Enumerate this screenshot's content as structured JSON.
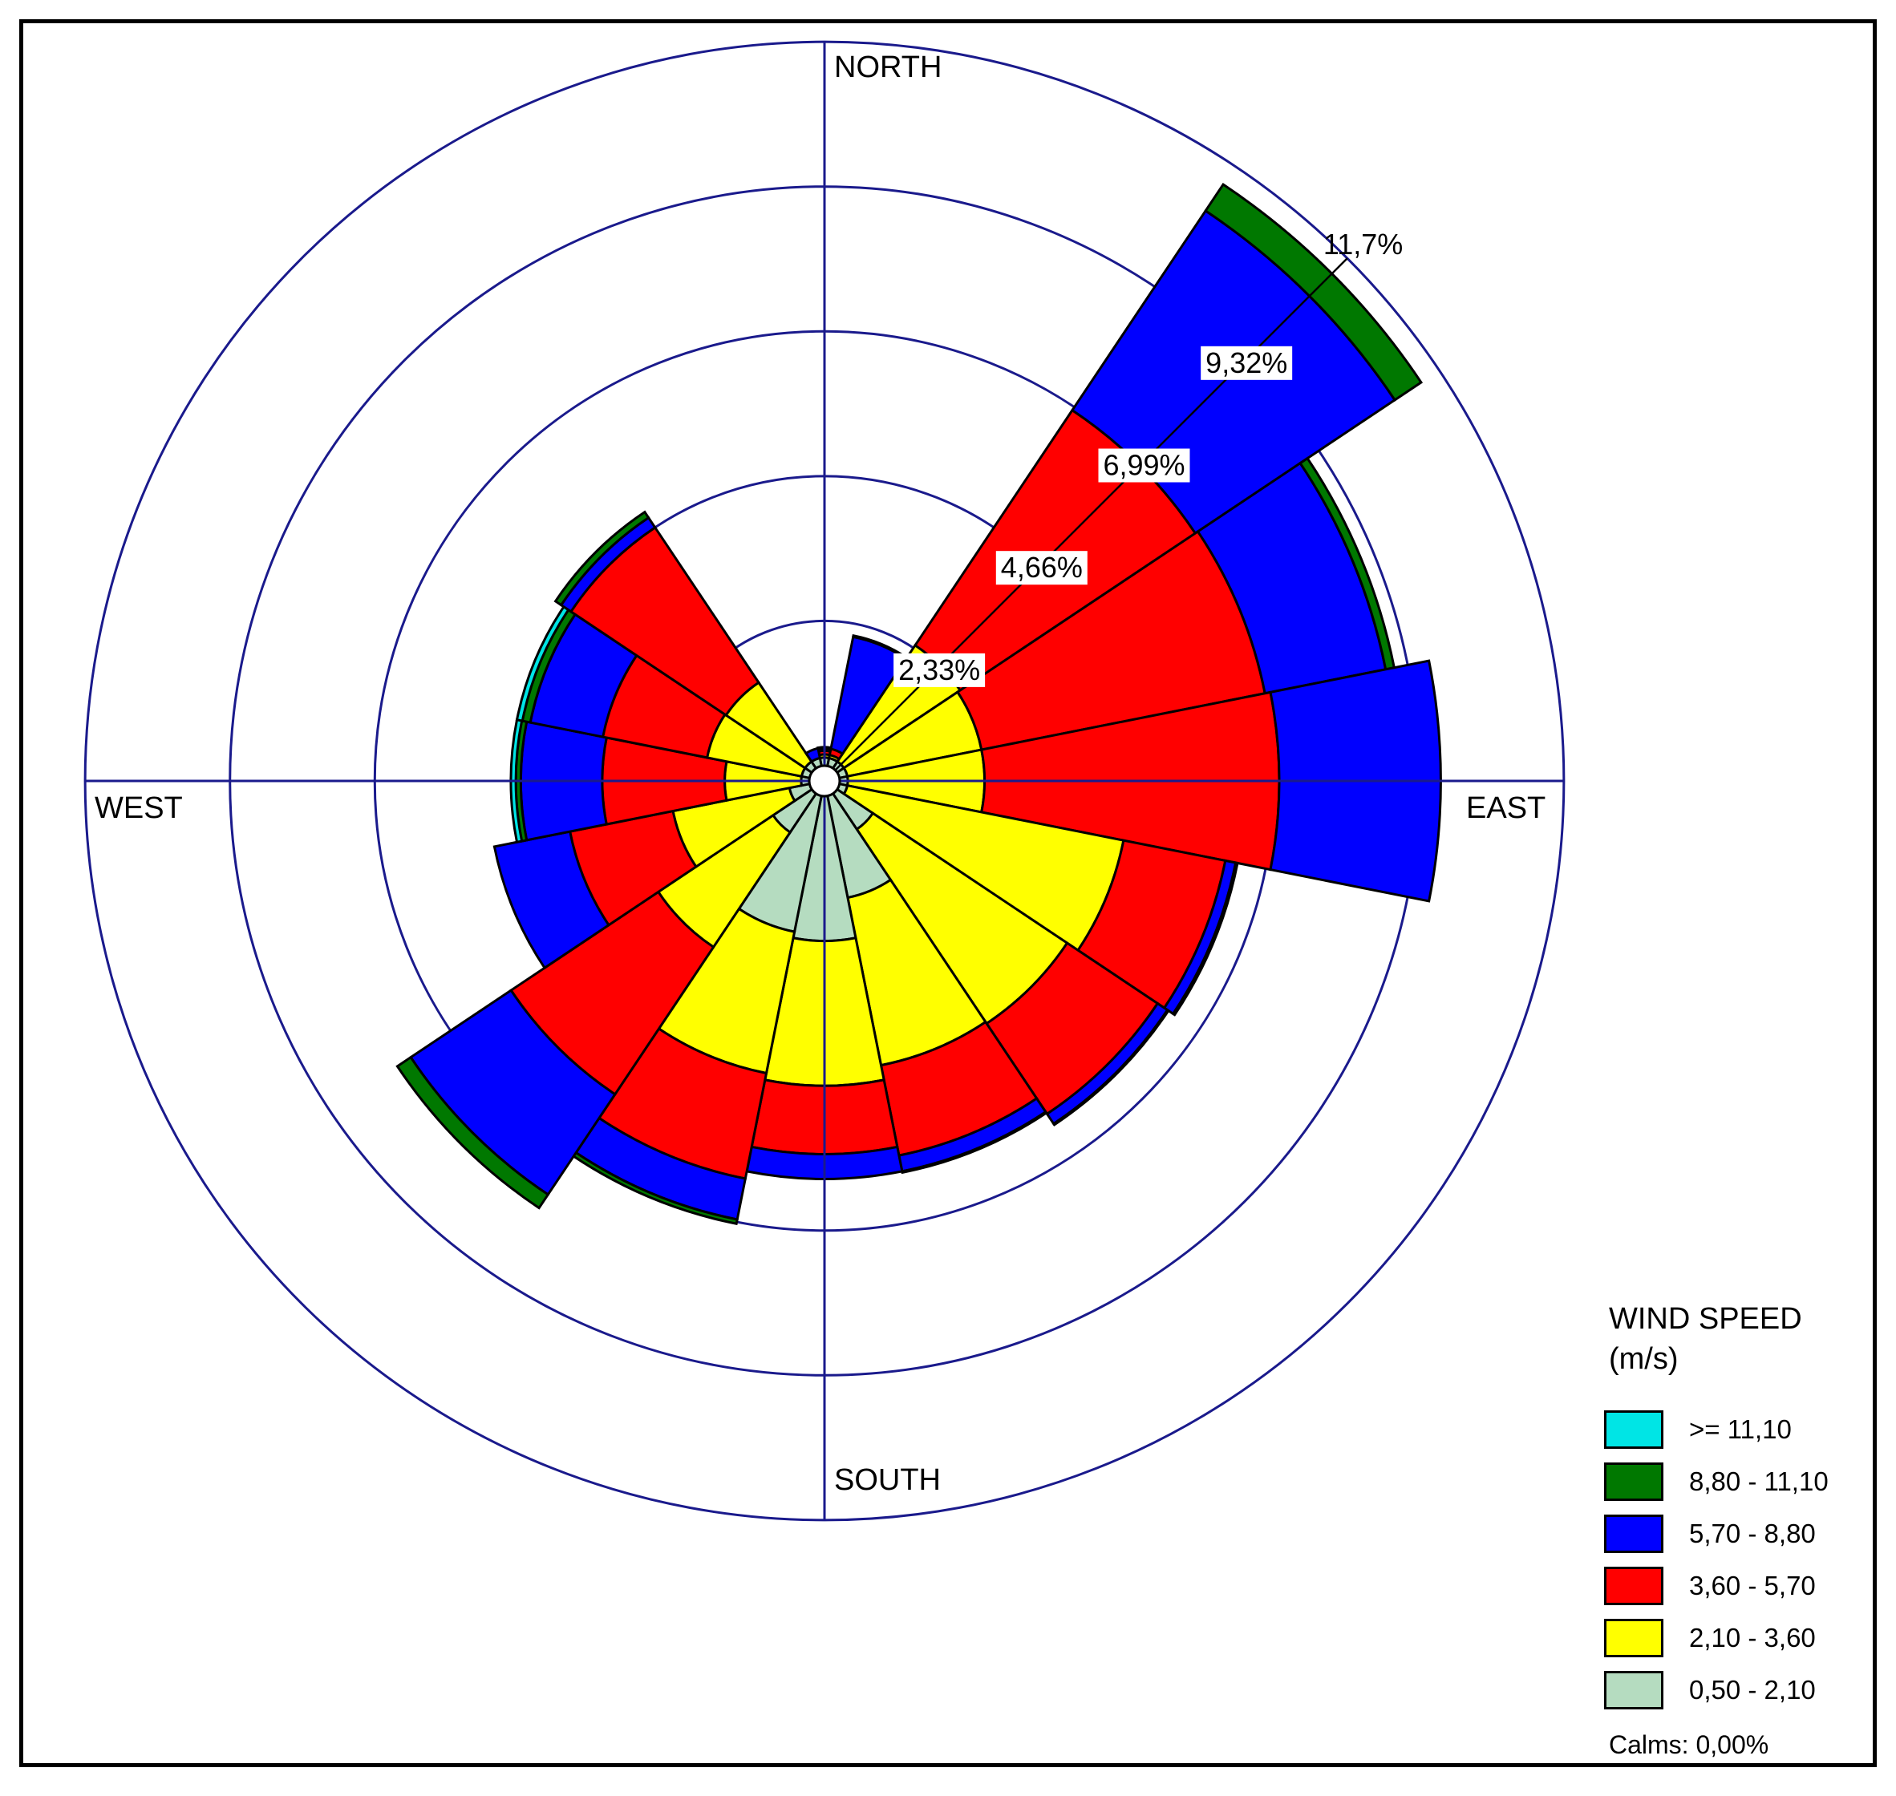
{
  "chart_data": {
    "type": "wind-rose",
    "directions": [
      "N",
      "NNE",
      "NE",
      "ENE",
      "E",
      "ESE",
      "SE",
      "SSE",
      "S",
      "SSW",
      "SW",
      "WSW",
      "W",
      "WNW",
      "NW",
      "NNW"
    ],
    "bins": [
      {
        "label": "0,50 - 2,10",
        "color": "#b5dcc0"
      },
      {
        "label": "2,10 - 3,60",
        "color": "#ffff00"
      },
      {
        "label": "3,60 - 5,70",
        "color": "#ff0000"
      },
      {
        "label": "5,70 - 8,80",
        "color": "#0000ff"
      },
      {
        "label": "8,80 - 11,10",
        "color": "#007800"
      },
      {
        "label": ">= 11,10",
        "color": "#00e5e5"
      }
    ],
    "cumulative_percent": [
      [
        0.13,
        0.18,
        0.24,
        0.28,
        0.3,
        0.3
      ],
      [
        0.13,
        0.18,
        0.28,
        2.12,
        2.14,
        2.14
      ],
      [
        0.13,
        2.38,
        6.93,
        10.79,
        11.3,
        11.3
      ],
      [
        0.13,
        2.33,
        6.98,
        8.96,
        9.1,
        9.1
      ],
      [
        0.13,
        2.33,
        7.07,
        9.67,
        9.67,
        9.67
      ],
      [
        0.13,
        4.66,
        6.33,
        6.5,
        6.53,
        6.53
      ],
      [
        0.69,
        4.45,
        6.2,
        6.39,
        6.41,
        6.41
      ],
      [
        1.67,
        4.42,
        5.9,
        6.16,
        6.18,
        6.18
      ],
      [
        2.33,
        4.66,
        5.76,
        6.16,
        6.16,
        6.16
      ],
      [
        2.23,
        4.55,
        6.28,
        6.95,
        7.02,
        7.02
      ],
      [
        0.75,
        2.97,
        5.82,
        7.76,
        8.02,
        8.02
      ],
      [
        0.33,
        2.24,
        3.93,
        5.17,
        5.17,
        5.17
      ],
      [
        0.13,
        1.36,
        3.33,
        4.64,
        4.72,
        4.8
      ],
      [
        0.13,
        1.68,
        3.39,
        4.58,
        4.71,
        4.8
      ],
      [
        0.13,
        1.66,
        4.66,
        4.85,
        4.96,
        4.96
      ],
      [
        0.13,
        0.13,
        0.13,
        0.29,
        0.29,
        0.29
      ]
    ],
    "ring_labels": [
      "2,33%",
      "4,66%",
      "6,99%",
      "9,32%",
      "11,7%"
    ],
    "axis_labels": {
      "north": "NORTH",
      "east": "EAST",
      "south": "SOUTH",
      "west": "WEST"
    },
    "legend": {
      "title": "WIND SPEED\n(m/s)",
      "placement": "bottom-right",
      "items": [
        {
          "label": ">= 11,10",
          "color": "#00e5e5"
        },
        {
          "label": "8,80 - 11,10",
          "color": "#007800"
        },
        {
          "label": "5,70 - 8,80",
          "color": "#0000ff"
        },
        {
          "label": "3,60 - 5,70",
          "color": "#ff0000"
        },
        {
          "label": "2,10 - 3,60",
          "color": "#ffff00"
        },
        {
          "label": "0,50 - 2,10",
          "color": "#b5dcc0"
        }
      ]
    },
    "calms": "Calms: 0,00%",
    "grid_color": "#1a1a8c"
  }
}
